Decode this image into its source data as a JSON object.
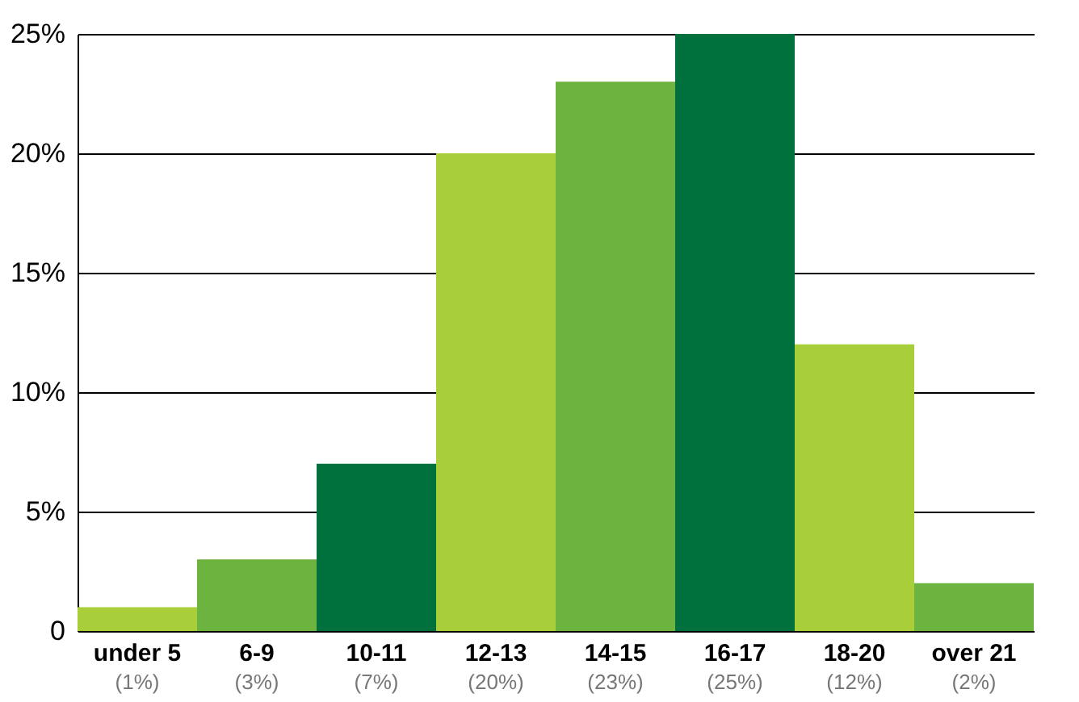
{
  "chart_data": {
    "type": "bar",
    "categories": [
      "under 5",
      "6-9",
      "10-11",
      "12-13",
      "14-15",
      "16-17",
      "18-20",
      "over 21"
    ],
    "values": [
      1,
      3,
      7,
      20,
      23,
      25,
      12,
      2
    ],
    "colors": [
      "#a8cf3a",
      "#6db33f",
      "#00703c",
      "#a8cf3a",
      "#6db33f",
      "#00703c",
      "#a8cf3a",
      "#6db33f"
    ],
    "value_labels": [
      "(1%)",
      "(3%)",
      "(7%)",
      "(20%)",
      "(23%)",
      "(25%)",
      "(12%)",
      "(2%)"
    ],
    "ylim": [
      0,
      25
    ],
    "yticks": [
      {
        "value": 0,
        "label": "0"
      },
      {
        "value": 5,
        "label": "5%"
      },
      {
        "value": 10,
        "label": "10%"
      },
      {
        "value": 15,
        "label": "15%"
      },
      {
        "value": 20,
        "label": "20%"
      },
      {
        "value": 25,
        "label": "25%"
      }
    ],
    "grid": "y"
  }
}
